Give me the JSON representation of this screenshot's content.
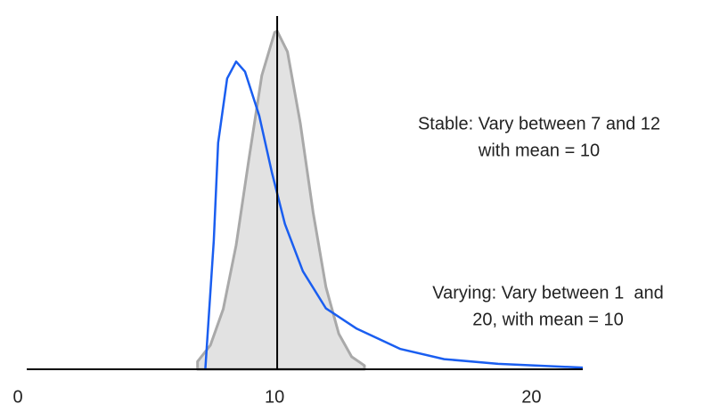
{
  "chart_data": {
    "type": "line",
    "xlim": [
      0,
      22
    ],
    "ylim": [
      0,
      1
    ],
    "xticks": [
      0,
      10,
      20
    ],
    "mean_line": 10.1,
    "series": [
      {
        "color": "#a9a9a9",
        "fill": "#e2e2e2",
        "x": [
          7,
          7.5,
          8,
          8.5,
          9,
          9.5,
          10,
          10.1,
          10.5,
          11,
          11.5,
          12,
          12.5,
          13,
          13.5
        ],
        "values": [
          0.023,
          0.071,
          0.178,
          0.367,
          0.623,
          0.869,
          0.996,
          1.0,
          0.939,
          0.728,
          0.464,
          0.243,
          0.105,
          0.037,
          0.011
        ]
      },
      {
        "color": "#1a5ef0",
        "x": [
          7.3,
          7.63,
          7.8,
          8.15,
          8.5,
          8.85,
          9.4,
          9.9,
          10.4,
          11.1,
          12,
          13.2,
          14.9,
          16.6,
          18.7,
          21.1,
          22
        ],
        "values": [
          0,
          0.38,
          0.67,
          0.86,
          0.91,
          0.88,
          0.75,
          0.58,
          0.43,
          0.29,
          0.18,
          0.12,
          0.06,
          0.03,
          0.016,
          0.008,
          0.005
        ]
      }
    ],
    "annotations": [
      [
        "Stable: Vary between 7 and 12",
        "with mean = 10"
      ],
      [
        "Varying: Vary between 1  and",
        "20, with mean = 10"
      ]
    ]
  }
}
